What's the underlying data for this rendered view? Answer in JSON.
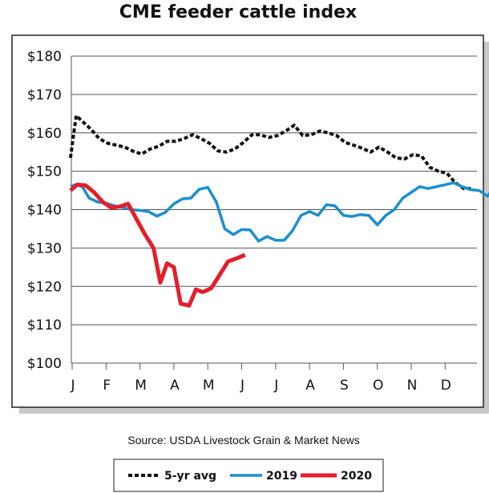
{
  "chart_data": {
    "type": "line",
    "title": "CME feeder cattle index",
    "source": "Source: USDA Livestock Grain & Market News",
    "ylim": [
      100,
      180
    ],
    "yticks": [
      {
        "value": 180,
        "label": "$180"
      },
      {
        "value": 170,
        "label": "$170"
      },
      {
        "value": 160,
        "label": "$160"
      },
      {
        "value": 150,
        "label": "$150"
      },
      {
        "value": 140,
        "label": "$140"
      },
      {
        "value": 130,
        "label": "$130"
      },
      {
        "value": 120,
        "label": "$120"
      },
      {
        "value": 110,
        "label": "$110"
      },
      {
        "value": 100,
        "label": "$100"
      }
    ],
    "xlim": [
      0,
      12
    ],
    "xticks": [
      {
        "value": 0,
        "label": "J"
      },
      {
        "value": 1,
        "label": "F"
      },
      {
        "value": 2,
        "label": "M"
      },
      {
        "value": 3,
        "label": "A"
      },
      {
        "value": 4,
        "label": "M"
      },
      {
        "value": 5,
        "label": "J"
      },
      {
        "value": 6,
        "label": "J"
      },
      {
        "value": 7,
        "label": "A"
      },
      {
        "value": 8,
        "label": "S"
      },
      {
        "value": 9,
        "label": "O"
      },
      {
        "value": 10,
        "label": "N"
      },
      {
        "value": 11,
        "label": "D"
      }
    ],
    "grid": true,
    "legend_position": "bottom",
    "series": [
      {
        "name": "5-yr avg",
        "color": "#111111",
        "style": "dotted",
        "points": [
          [
            -0.05,
            153.5
          ],
          [
            0.02,
            158
          ],
          [
            0.12,
            164.5
          ],
          [
            0.3,
            163
          ],
          [
            0.55,
            161
          ],
          [
            0.8,
            158.5
          ],
          [
            1.05,
            157.3
          ],
          [
            1.3,
            156.8
          ],
          [
            1.55,
            156.3
          ],
          [
            1.8,
            155.2
          ],
          [
            2.05,
            154.5
          ],
          [
            2.3,
            155.8
          ],
          [
            2.55,
            156.5
          ],
          [
            2.8,
            157.8
          ],
          [
            3.05,
            157.8
          ],
          [
            3.3,
            158.5
          ],
          [
            3.55,
            159.5
          ],
          [
            3.8,
            158.5
          ],
          [
            4.05,
            157.3
          ],
          [
            4.3,
            155.3
          ],
          [
            4.55,
            155
          ],
          [
            4.8,
            155.8
          ],
          [
            5.05,
            157.5
          ],
          [
            5.3,
            159.5
          ],
          [
            5.55,
            159.5
          ],
          [
            5.8,
            158.8
          ],
          [
            6.05,
            159.3
          ],
          [
            6.3,
            160.5
          ],
          [
            6.55,
            162
          ],
          [
            6.8,
            159.3
          ],
          [
            7.05,
            159.5
          ],
          [
            7.3,
            160.5
          ],
          [
            7.55,
            160
          ],
          [
            7.8,
            159.3
          ],
          [
            8.05,
            157.5
          ],
          [
            8.3,
            156.8
          ],
          [
            8.55,
            156
          ],
          [
            8.8,
            155
          ],
          [
            9.05,
            156.3
          ],
          [
            9.3,
            155
          ],
          [
            9.55,
            153.5
          ],
          [
            9.8,
            153.2
          ],
          [
            10.05,
            154.3
          ],
          [
            10.3,
            154
          ],
          [
            10.55,
            151
          ],
          [
            10.8,
            150
          ],
          [
            11.05,
            149.5
          ],
          [
            11.3,
            147
          ],
          [
            11.55,
            145.5
          ],
          [
            11.8,
            145.5
          ]
        ]
      },
      {
        "name": "2019",
        "color": "#1a8fd0",
        "style": "solid",
        "points": [
          [
            -0.05,
            146
          ],
          [
            0.1,
            146.5
          ],
          [
            0.3,
            146
          ],
          [
            0.5,
            143
          ],
          [
            0.75,
            142
          ],
          [
            1.0,
            141.7
          ],
          [
            1.25,
            141
          ],
          [
            1.5,
            140.5
          ],
          [
            1.75,
            140
          ],
          [
            2.0,
            139.8
          ],
          [
            2.25,
            139.5
          ],
          [
            2.5,
            138.3
          ],
          [
            2.75,
            139.3
          ],
          [
            3.0,
            141.5
          ],
          [
            3.25,
            142.8
          ],
          [
            3.5,
            143
          ],
          [
            3.75,
            145.3
          ],
          [
            4.0,
            145.8
          ],
          [
            4.25,
            142
          ],
          [
            4.5,
            135
          ],
          [
            4.75,
            133.5
          ],
          [
            5.0,
            134.8
          ],
          [
            5.25,
            134.7
          ],
          [
            5.5,
            131.8
          ],
          [
            5.75,
            133
          ],
          [
            6.0,
            132
          ],
          [
            6.25,
            132
          ],
          [
            6.5,
            134.5
          ],
          [
            6.75,
            138.5
          ],
          [
            7.0,
            139.5
          ],
          [
            7.25,
            138.5
          ],
          [
            7.5,
            141.3
          ],
          [
            7.75,
            141
          ],
          [
            8.0,
            138.5
          ],
          [
            8.25,
            138.2
          ],
          [
            8.5,
            138.7
          ],
          [
            8.75,
            138.5
          ],
          [
            9.0,
            136
          ],
          [
            9.25,
            138.5
          ],
          [
            9.5,
            140
          ],
          [
            9.75,
            143
          ],
          [
            10.0,
            144.5
          ],
          [
            10.25,
            146
          ],
          [
            10.5,
            145.5
          ],
          [
            10.75,
            146
          ],
          [
            11.0,
            146.5
          ],
          [
            11.25,
            147
          ],
          [
            11.5,
            146
          ],
          [
            11.75,
            145.2
          ],
          [
            12.0,
            145
          ],
          [
            12.25,
            143.5
          ],
          [
            12.5,
            146.5
          ],
          [
            12.75,
            144.5
          ]
        ]
      },
      {
        "name": "2020",
        "color": "#e41e2b",
        "style": "solid",
        "points": [
          [
            -0.05,
            145
          ],
          [
            0.15,
            146.5
          ],
          [
            0.4,
            146.3
          ],
          [
            0.65,
            144.5
          ],
          [
            0.9,
            142
          ],
          [
            1.15,
            140.5
          ],
          [
            1.4,
            140.8
          ],
          [
            1.65,
            141.5
          ],
          [
            1.9,
            137.5
          ],
          [
            2.15,
            133.5
          ],
          [
            2.4,
            130
          ],
          [
            2.6,
            121
          ],
          [
            2.8,
            126
          ],
          [
            3.0,
            125
          ],
          [
            3.2,
            115.5
          ],
          [
            3.45,
            115
          ],
          [
            3.65,
            119.2
          ],
          [
            3.85,
            118.5
          ],
          [
            4.1,
            119.5
          ],
          [
            4.35,
            123
          ],
          [
            4.6,
            126.5
          ],
          [
            4.85,
            127.3
          ],
          [
            5.1,
            128.2
          ]
        ]
      }
    ]
  }
}
